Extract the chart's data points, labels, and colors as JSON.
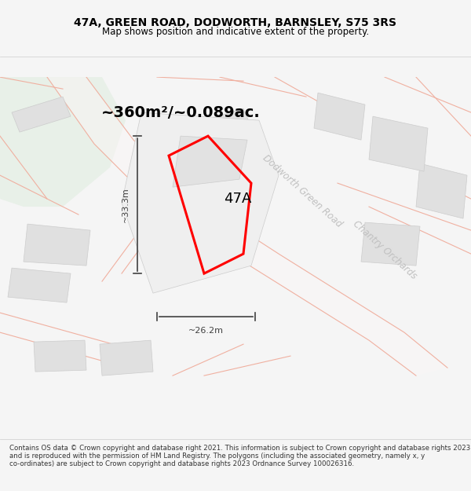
{
  "title": "47A, GREEN ROAD, DODWORTH, BARNSLEY, S75 3RS",
  "subtitle": "Map shows position and indicative extent of the property.",
  "area_text": "~360m²/~0.089ac.",
  "label_47a": "47A",
  "dim_width": "~26.2m",
  "dim_height": "~33.3m",
  "road_label1": "Dodworth Green Road",
  "road_label2": "Chantry Orchards",
  "footer": "Contains OS data © Crown copyright and database right 2021. This information is subject to Crown copyright and database rights 2023 and is reproduced with the permission of HM Land Registry. The polygons (including the associated geometry, namely x, y co-ordinates) are subject to Crown copyright and database rights 2023 Ordnance Survey 100026316.",
  "bg_color": "#f5f5f5",
  "map_bg": "#ffffff",
  "green_area_color": "#e8f0e8",
  "light_gray": "#e8e8e8",
  "road_line_color": "#f0b0a0",
  "property_outline_color": "#ff0000",
  "building_fill": "#e0e0e0",
  "dim_line_color": "#404040",
  "road_label_color": "#b0b0b0",
  "title_color": "#000000",
  "text_color": "#000000"
}
